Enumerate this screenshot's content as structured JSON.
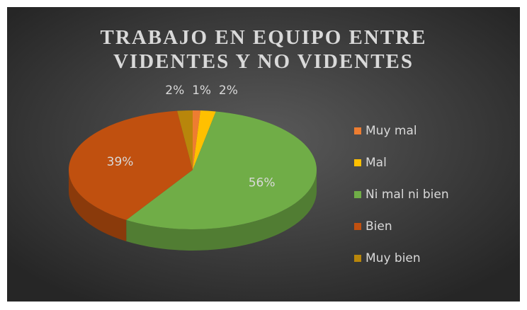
{
  "chart_data": {
    "type": "pie3d",
    "title": "TRABAJO EN EQUIPO ENTRE VIDENTES Y NO VIDENTES",
    "categories": [
      "Muy mal",
      "Mal",
      "Ni mal ni bien",
      "Bien",
      "Muy bien"
    ],
    "values": [
      1,
      2,
      56,
      39,
      2
    ],
    "value_labels": [
      "1%",
      "2%",
      "56%",
      "39%",
      "2%"
    ],
    "colors": [
      "#ed7d31",
      "#ffc000",
      "#70ad47",
      "#c0500f",
      "#b8860b"
    ],
    "legend": "right"
  }
}
